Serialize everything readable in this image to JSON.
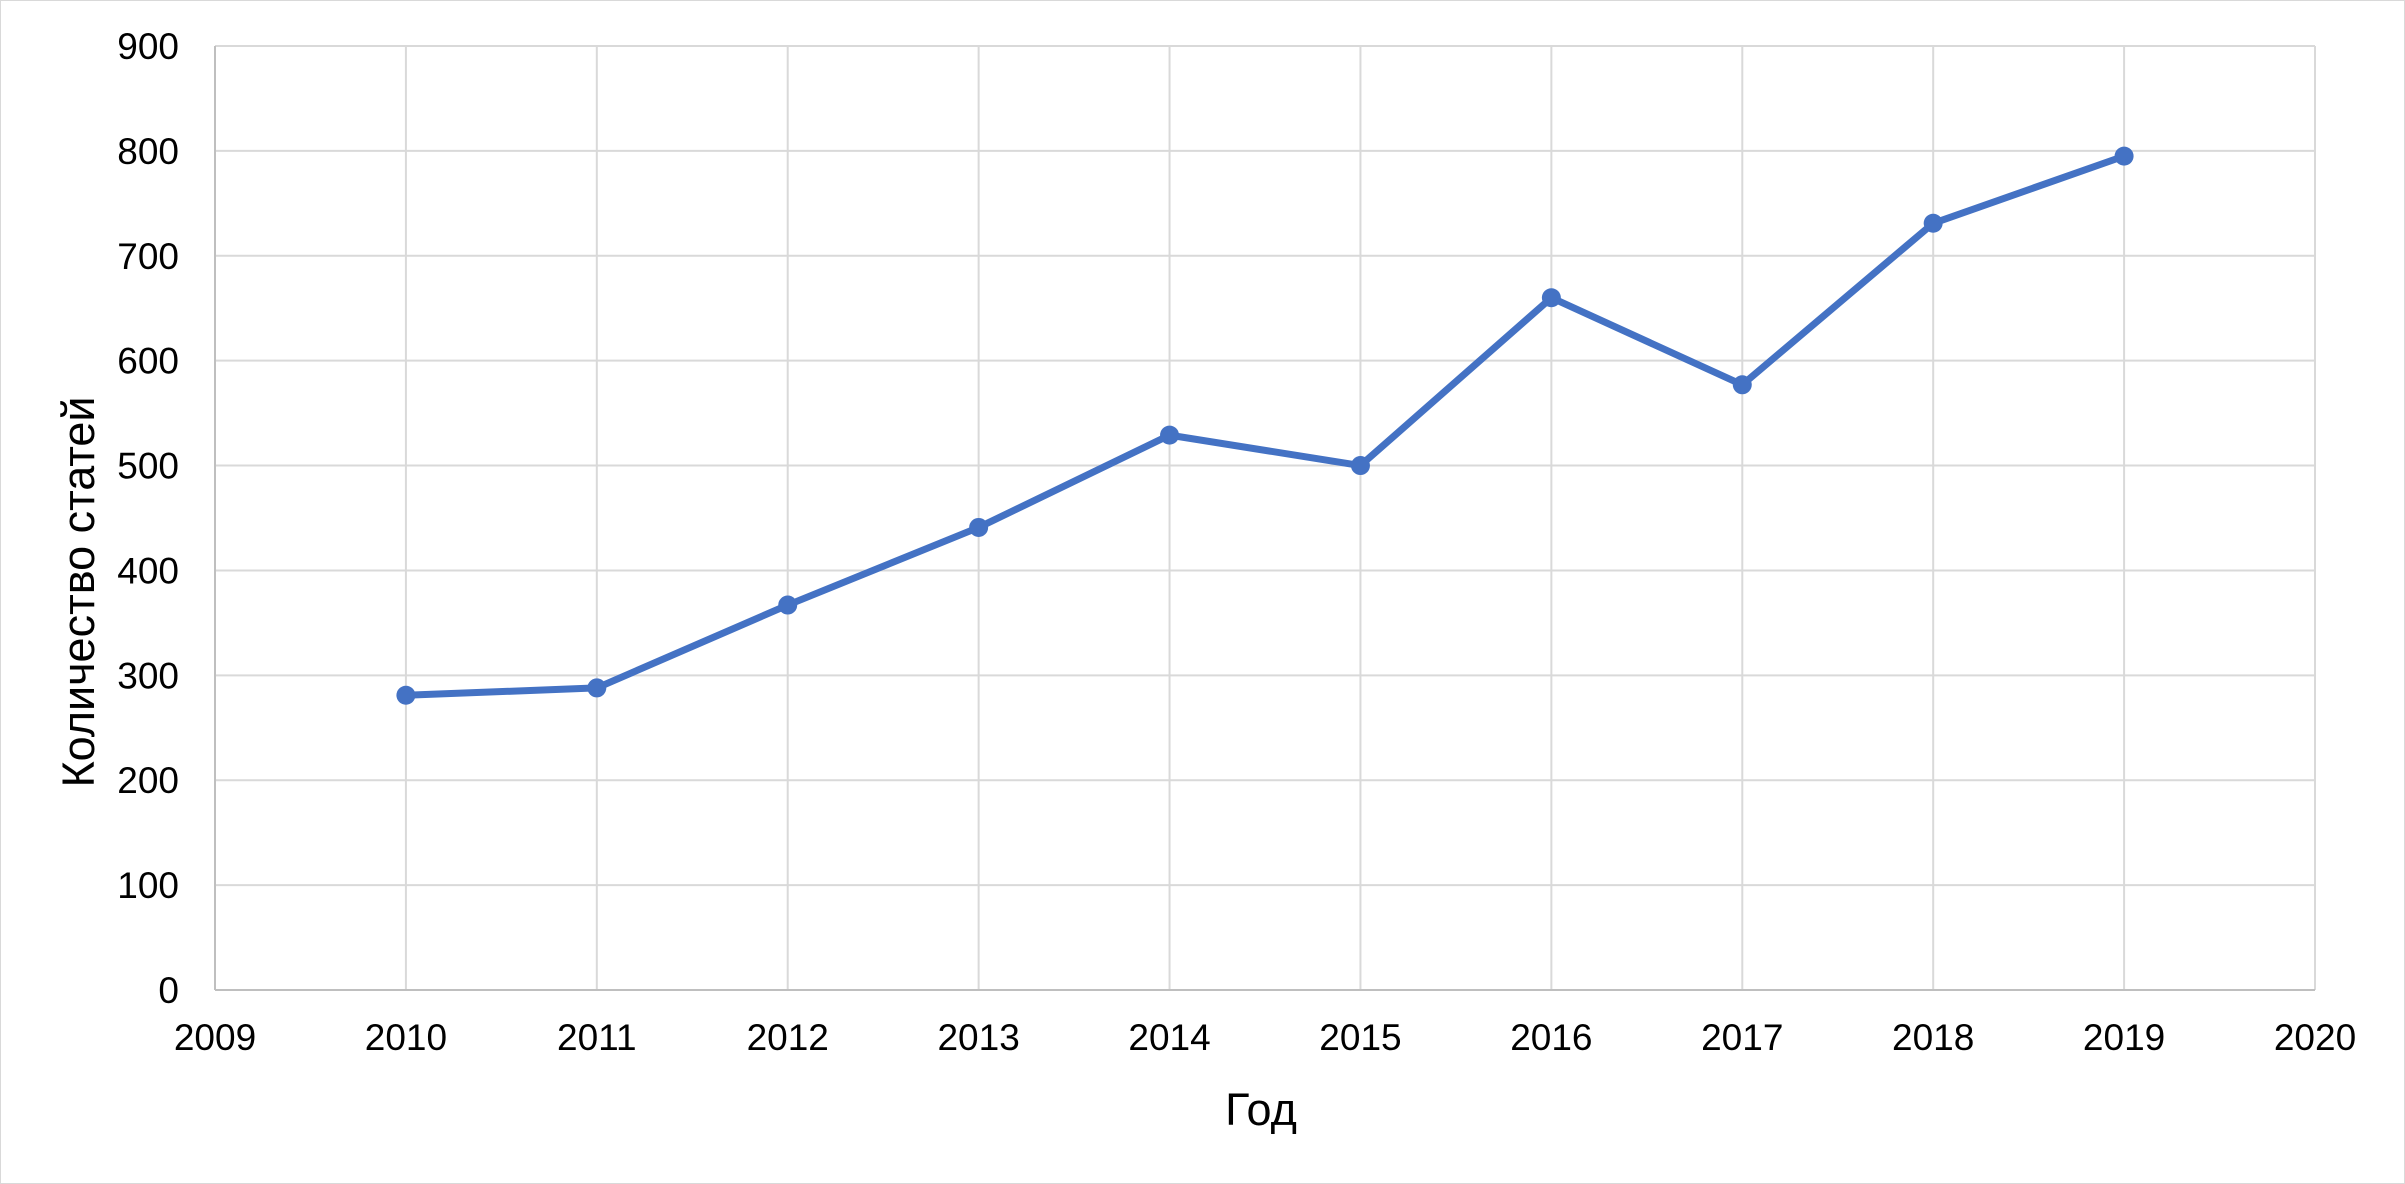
{
  "chart_data": {
    "type": "scatter",
    "mode": "lines+markers",
    "title": "",
    "xlabel": "Год",
    "ylabel": "Количество статей",
    "xlim": [
      2009,
      2020
    ],
    "ylim": [
      0,
      900
    ],
    "x_ticks": [
      2009,
      2010,
      2011,
      2012,
      2013,
      2014,
      2015,
      2016,
      2017,
      2018,
      2019,
      2020
    ],
    "y_ticks": [
      0,
      100,
      200,
      300,
      400,
      500,
      600,
      700,
      800,
      900
    ],
    "grid": true,
    "legend": "none",
    "series": [
      {
        "color": "#4472C4",
        "x": [
          2010,
          2011,
          2012,
          2013,
          2014,
          2015,
          2016,
          2017,
          2018,
          2019
        ],
        "y": [
          281,
          288,
          367,
          441,
          529,
          500,
          660,
          577,
          731,
          795
        ]
      }
    ]
  }
}
